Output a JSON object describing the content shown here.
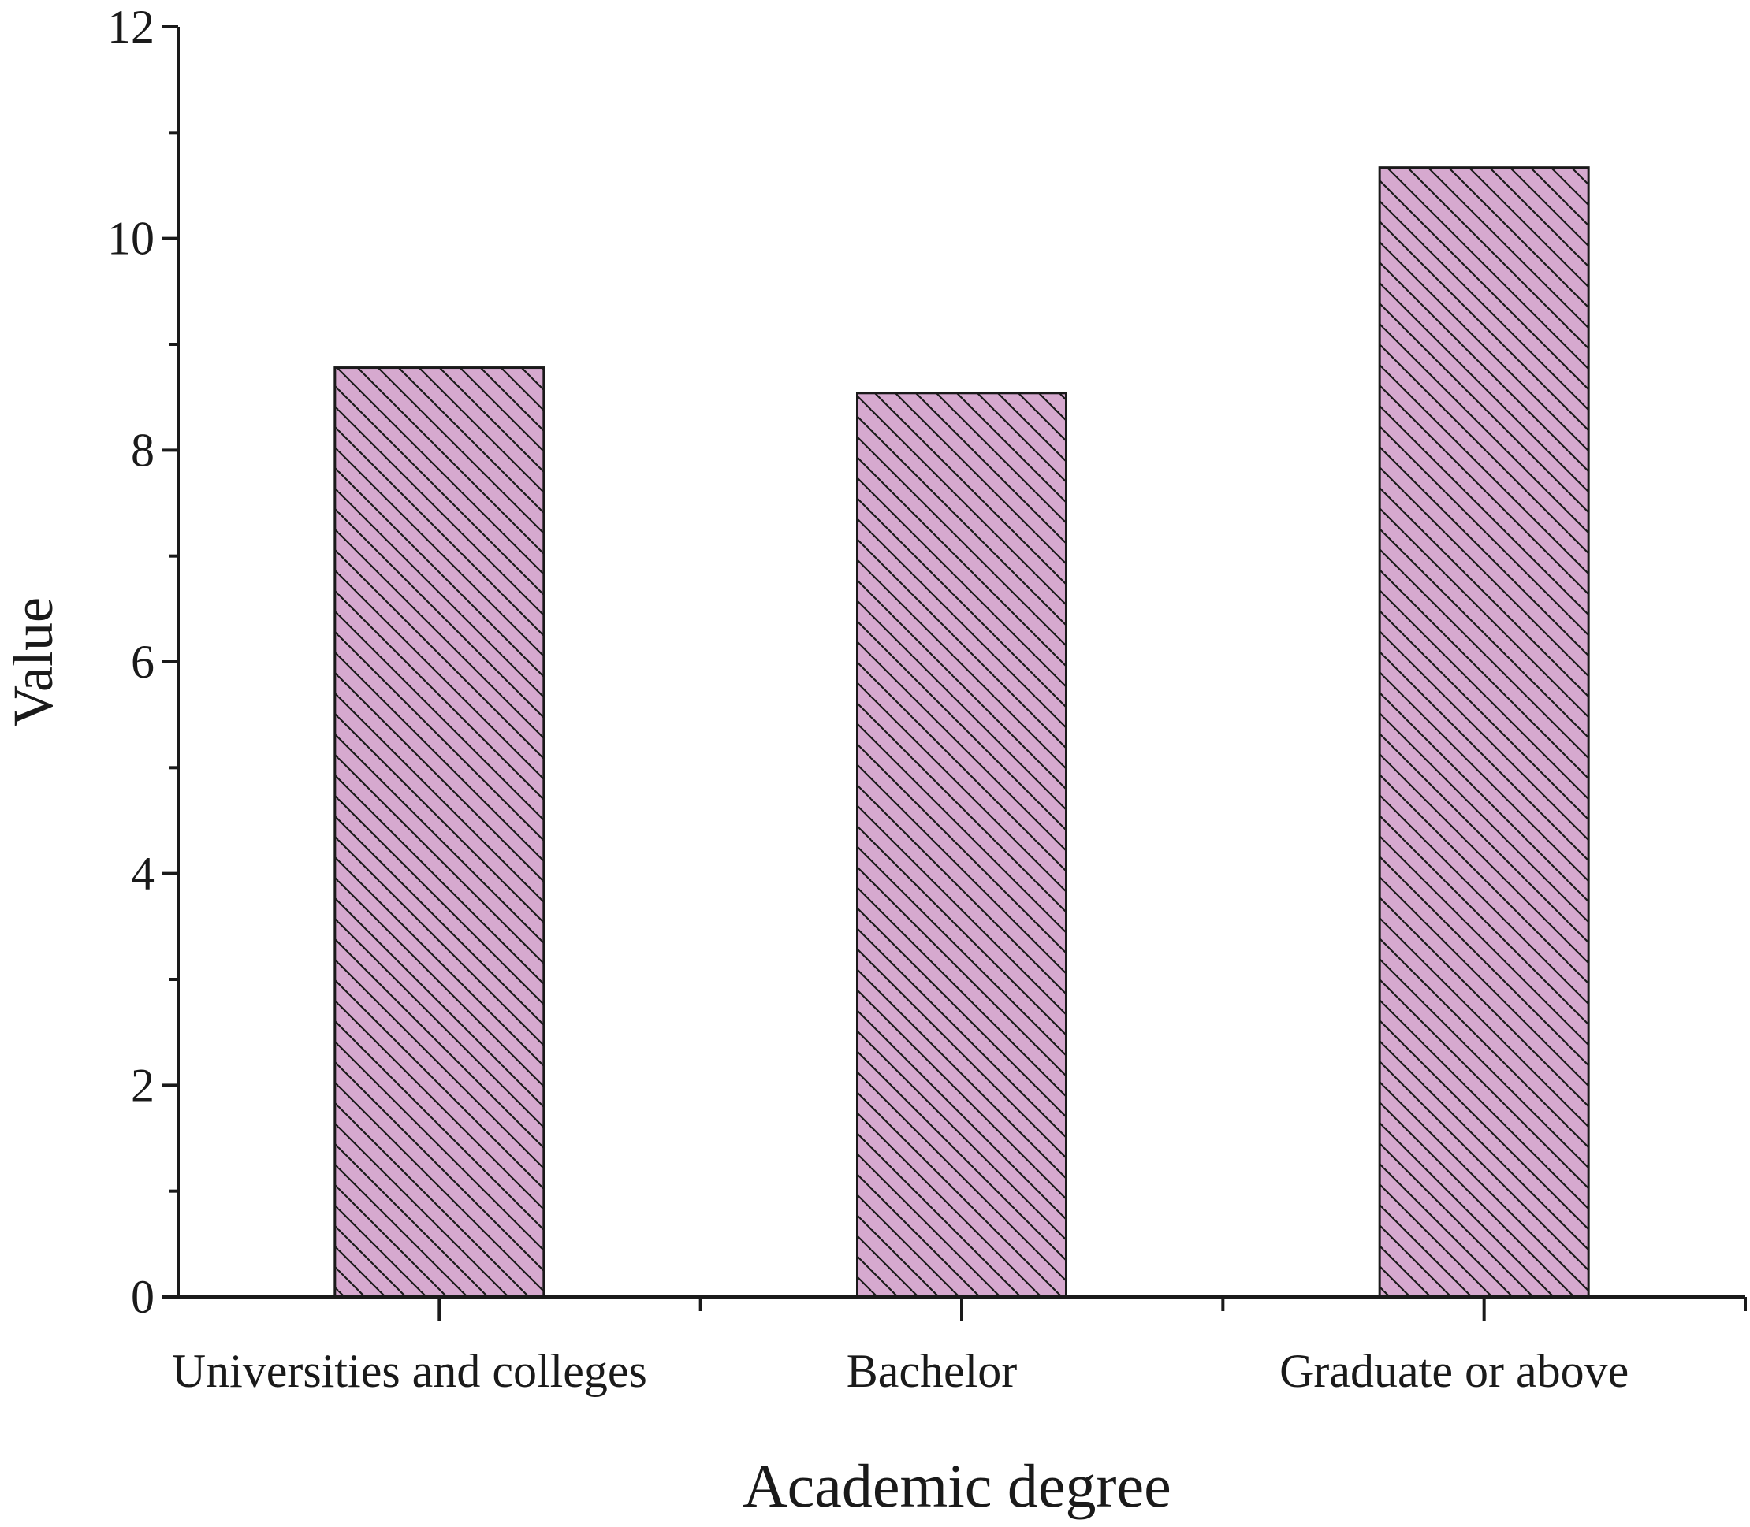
{
  "chart_data": {
    "type": "bar",
    "categories": [
      "Universities and colleges",
      "Bachelor",
      "Graduate or above"
    ],
    "values": [
      8.78,
      8.54,
      10.67
    ],
    "title": "",
    "xlabel": "Academic degree",
    "ylabel": "Value",
    "ylim": [
      0,
      12
    ],
    "yticks": [
      0,
      2,
      4,
      6,
      8,
      10,
      12
    ],
    "grid": false,
    "legend": "none",
    "bar_color": "#d6a9cf",
    "bar_edge_color": "#1a1a1a",
    "bar_pattern": "diagonal-hatch"
  }
}
